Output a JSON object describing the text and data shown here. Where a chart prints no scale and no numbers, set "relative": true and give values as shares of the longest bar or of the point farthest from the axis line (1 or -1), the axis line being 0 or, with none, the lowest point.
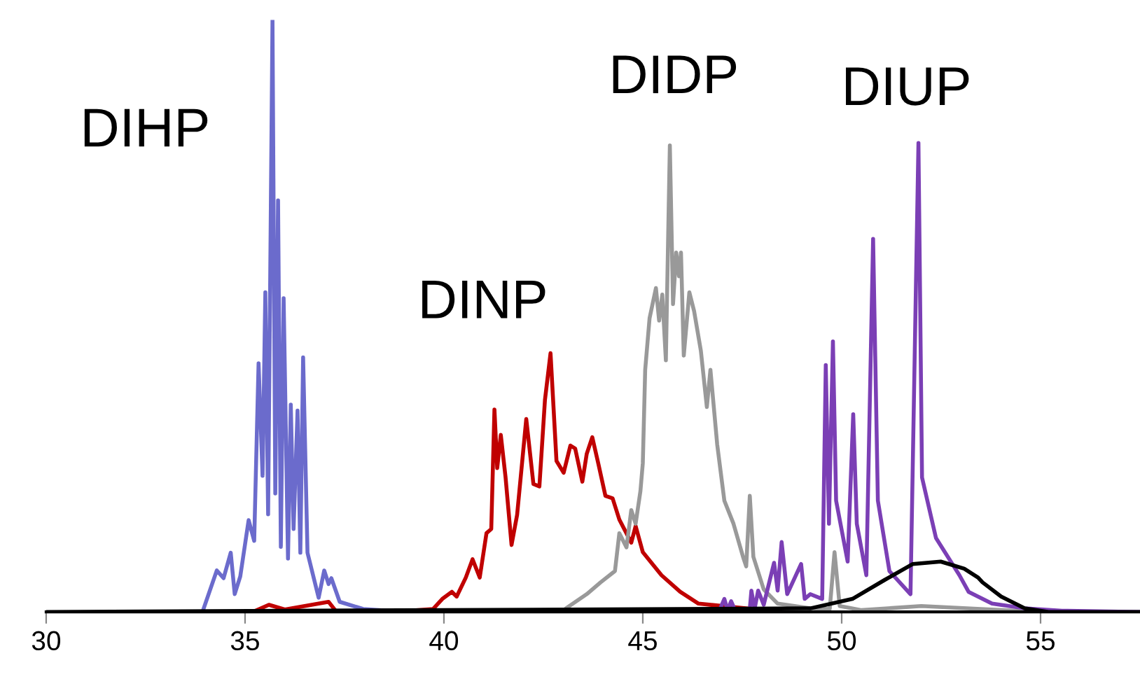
{
  "chart_data": {
    "type": "line",
    "relative": true,
    "xlim": [
      30,
      57.5
    ],
    "xticks": [
      30,
      35,
      40,
      45,
      50,
      55
    ],
    "grid": false,
    "legend": false,
    "marker": "none",
    "line_style": "solid",
    "series": [
      {
        "name": "DIHP",
        "color": "#6b6bcc",
        "x": [
          33.0,
          33.93,
          34.29,
          34.46,
          34.64,
          34.74,
          34.88,
          35.09,
          35.23,
          35.34,
          35.44,
          35.51,
          35.58,
          35.69,
          35.76,
          35.83,
          35.9,
          35.97,
          36.08,
          36.15,
          36.22,
          36.32,
          36.39,
          36.46,
          36.57,
          36.85,
          36.99,
          37.1,
          37.17,
          37.38,
          37.97,
          39.03
        ],
        "values": [
          0,
          0,
          0.07,
          0.057,
          0.1,
          0.03,
          0.06,
          0.155,
          0.12,
          0.42,
          0.23,
          0.54,
          0.165,
          1.0,
          0.2,
          0.695,
          0.11,
          0.53,
          0.09,
          0.35,
          0.14,
          0.34,
          0.1,
          0.43,
          0.1,
          0.024,
          0.07,
          0.047,
          0.057,
          0.017,
          0.005,
          0
        ]
      },
      {
        "name": "DINP",
        "color": "#c00000",
        "x": [
          33.0,
          35.2,
          35.6,
          36.0,
          37.1,
          37.3,
          38.68,
          39.73,
          39.96,
          40.2,
          40.32,
          40.55,
          40.72,
          40.9,
          41.07,
          41.19,
          41.27,
          41.34,
          41.43,
          41.55,
          41.7,
          41.84,
          42.07,
          42.25,
          42.4,
          42.54,
          42.68,
          42.83,
          43.01,
          43.18,
          43.3,
          43.48,
          43.59,
          43.73,
          43.88,
          44.06,
          44.24,
          44.41,
          44.71,
          44.82,
          45.0,
          45.47,
          45.94,
          46.4,
          48.5
        ],
        "values": [
          0,
          0,
          0.012,
          0.004,
          0.017,
          0,
          0,
          0.005,
          0.022,
          0.034,
          0.026,
          0.058,
          0.089,
          0.058,
          0.133,
          0.14,
          0.342,
          0.243,
          0.299,
          0.227,
          0.113,
          0.164,
          0.326,
          0.216,
          0.212,
          0.358,
          0.437,
          0.255,
          0.235,
          0.281,
          0.276,
          0.22,
          0.267,
          0.295,
          0.251,
          0.196,
          0.192,
          0.156,
          0.117,
          0.145,
          0.101,
          0.062,
          0.034,
          0.014,
          0
        ]
      },
      {
        "name": "DIDP",
        "color": "#999999",
        "x": [
          43.0,
          43.07,
          43.59,
          43.94,
          44.3,
          44.41,
          44.59,
          44.71,
          44.82,
          44.94,
          45.0,
          45.06,
          45.17,
          45.33,
          45.41,
          45.49,
          45.58,
          45.68,
          45.76,
          45.84,
          45.91,
          45.96,
          46.03,
          46.17,
          46.29,
          46.46,
          46.61,
          46.7,
          46.87,
          47.05,
          47.28,
          47.52,
          47.6,
          47.69,
          47.78,
          48.04,
          48.39,
          49.21,
          49.7,
          49.82,
          49.95,
          50.5,
          52.0,
          55.0,
          57.5
        ],
        "values": [
          0,
          0.006,
          0.03,
          0.05,
          0.069,
          0.133,
          0.109,
          0.172,
          0.149,
          0.204,
          0.251,
          0.409,
          0.496,
          0.547,
          0.492,
          0.536,
          0.425,
          0.788,
          0.52,
          0.607,
          0.567,
          0.607,
          0.433,
          0.54,
          0.508,
          0.441,
          0.346,
          0.409,
          0.283,
          0.188,
          0.149,
          0.093,
          0.077,
          0.196,
          0.093,
          0.038,
          0.014,
          0.006,
          0.005,
          0.101,
          0.01,
          0.003,
          0.01,
          0,
          0
        ]
      },
      {
        "name": "DIUP",
        "color": "#7b3fb5",
        "x": [
          46.8,
          46.93,
          47.05,
          47.13,
          47.22,
          47.32,
          47.69,
          47.73,
          47.81,
          47.9,
          48.04,
          48.3,
          48.39,
          48.49,
          48.63,
          48.98,
          49.07,
          49.21,
          49.51,
          49.6,
          49.68,
          49.78,
          49.86,
          50.15,
          50.29,
          50.38,
          50.62,
          50.79,
          50.91,
          51.2,
          51.73,
          51.93,
          52.02,
          52.37,
          52.96,
          53.19,
          53.78,
          54.6,
          55.54,
          57.5
        ],
        "values": [
          0,
          0.003,
          0.022,
          0.003,
          0.018,
          0.003,
          0.005,
          0.036,
          0.005,
          0.036,
          0.012,
          0.083,
          0.036,
          0.118,
          0.03,
          0.081,
          0.022,
          0.03,
          0.022,
          0.417,
          0.149,
          0.457,
          0.188,
          0.085,
          0.334,
          0.149,
          0.062,
          0.63,
          0.188,
          0.069,
          0.03,
          0.792,
          0.227,
          0.125,
          0.062,
          0.034,
          0.014,
          0.006,
          0.002,
          0
        ]
      },
      {
        "color": "#000000",
        "x": [
          30.0,
          49.21,
          50.27,
          51.08,
          51.79,
          52.49,
          53.08,
          53.43,
          53.54,
          54.01,
          54.6,
          55.2,
          57.5
        ],
        "values": [
          0,
          0.006,
          0.022,
          0.054,
          0.081,
          0.085,
          0.073,
          0.058,
          0.05,
          0.026,
          0.006,
          0,
          0
        ]
      }
    ]
  }
}
